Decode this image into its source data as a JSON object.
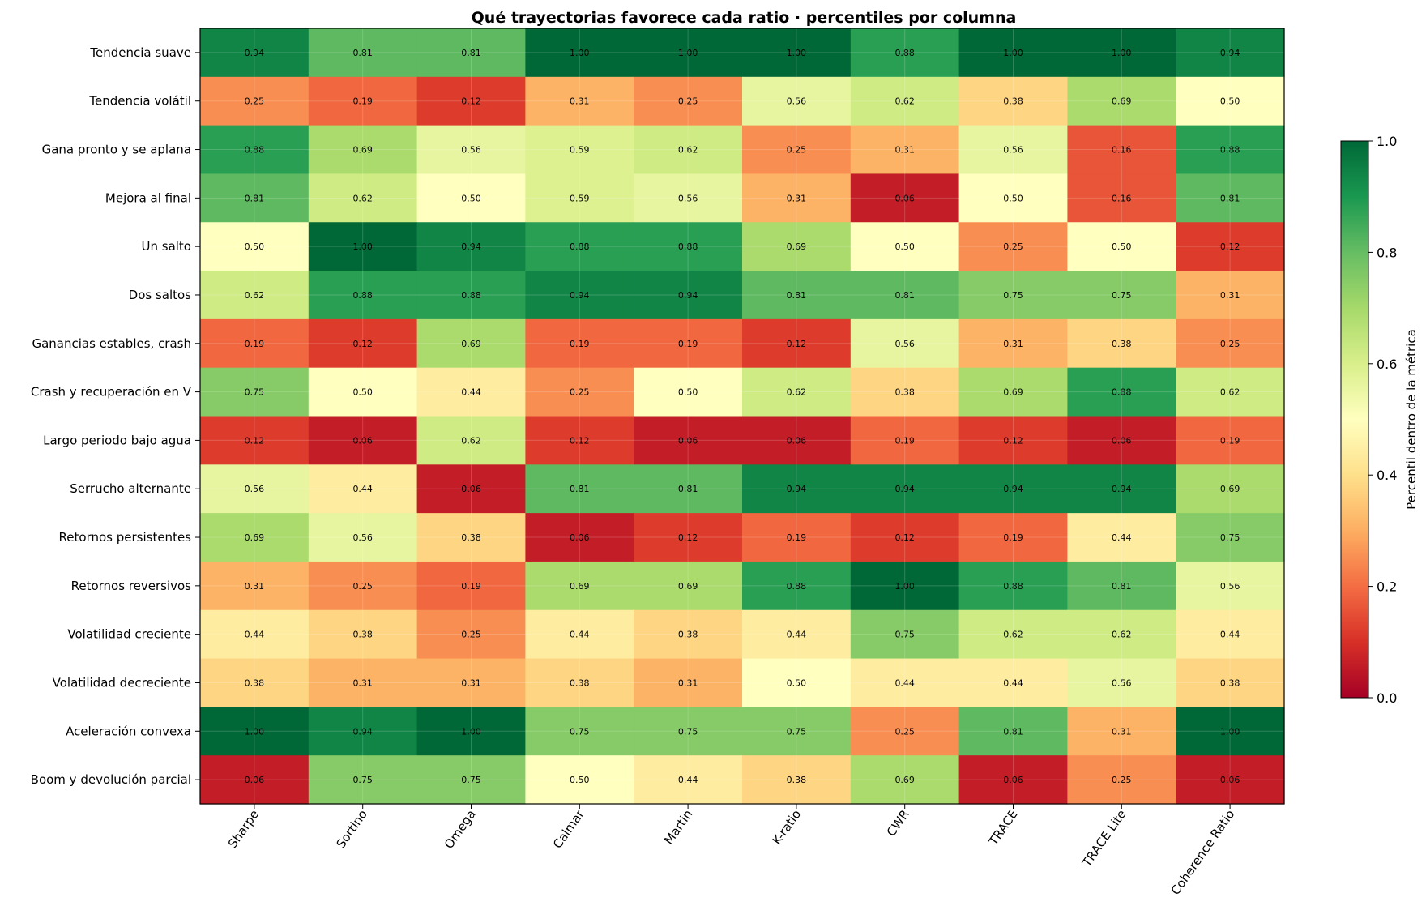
{
  "chart_data": {
    "type": "heatmap",
    "title": "Qué trayectorias favorece cada ratio · percentiles por columna",
    "rows": [
      "Tendencia suave",
      "Tendencia volátil",
      "Gana pronto y se aplana",
      "Mejora al final",
      "Un salto",
      "Dos saltos",
      "Ganancias estables, crash",
      "Crash y recuperación en V",
      "Largo periodo bajo agua",
      "Serrucho alternante",
      "Retornos persistentes",
      "Retornos reversivos",
      "Volatilidad creciente",
      "Volatilidad decreciente",
      "Aceleración convexa",
      "Boom y devolución parcial"
    ],
    "columns": [
      "Sharpe",
      "Sortino",
      "Omega",
      "Calmar",
      "Martin",
      "K-ratio",
      "CWR",
      "TRACE",
      "TRACE Lite",
      "Coherence Ratio"
    ],
    "values": [
      [
        0.94,
        0.81,
        0.81,
        1.0,
        1.0,
        1.0,
        0.88,
        1.0,
        1.0,
        0.94
      ],
      [
        0.25,
        0.19,
        0.12,
        0.31,
        0.25,
        0.56,
        0.62,
        0.38,
        0.69,
        0.5
      ],
      [
        0.88,
        0.69,
        0.56,
        0.59,
        0.62,
        0.25,
        0.31,
        0.56,
        0.16,
        0.88
      ],
      [
        0.81,
        0.62,
        0.5,
        0.59,
        0.56,
        0.31,
        0.06,
        0.5,
        0.16,
        0.81
      ],
      [
        0.5,
        1.0,
        0.94,
        0.88,
        0.88,
        0.69,
        0.5,
        0.25,
        0.5,
        0.12
      ],
      [
        0.62,
        0.88,
        0.88,
        0.94,
        0.94,
        0.81,
        0.81,
        0.75,
        0.75,
        0.31
      ],
      [
        0.19,
        0.12,
        0.69,
        0.19,
        0.19,
        0.12,
        0.56,
        0.31,
        0.38,
        0.25
      ],
      [
        0.75,
        0.5,
        0.44,
        0.25,
        0.5,
        0.62,
        0.38,
        0.69,
        0.88,
        0.62
      ],
      [
        0.12,
        0.06,
        0.62,
        0.12,
        0.06,
        0.06,
        0.19,
        0.12,
        0.06,
        0.19
      ],
      [
        0.56,
        0.44,
        0.06,
        0.81,
        0.81,
        0.94,
        0.94,
        0.94,
        0.94,
        0.69
      ],
      [
        0.69,
        0.56,
        0.38,
        0.06,
        0.12,
        0.19,
        0.12,
        0.19,
        0.44,
        0.75
      ],
      [
        0.31,
        0.25,
        0.19,
        0.69,
        0.69,
        0.88,
        1.0,
        0.88,
        0.81,
        0.56
      ],
      [
        0.44,
        0.38,
        0.25,
        0.44,
        0.38,
        0.44,
        0.75,
        0.62,
        0.62,
        0.44
      ],
      [
        0.38,
        0.31,
        0.31,
        0.38,
        0.31,
        0.5,
        0.44,
        0.44,
        0.56,
        0.38
      ],
      [
        1.0,
        0.94,
        1.0,
        0.75,
        0.75,
        0.75,
        0.25,
        0.81,
        0.31,
        1.0
      ],
      [
        0.06,
        0.75,
        0.75,
        0.5,
        0.44,
        0.38,
        0.69,
        0.06,
        0.25,
        0.06
      ]
    ],
    "value_format": "0.00",
    "colormap": "RdYlGn",
    "vmin": 0.0,
    "vmax": 1.0,
    "colorbar": {
      "label": "Percentil dentro de la métrica",
      "ticks": [
        "0.0",
        "0.2",
        "0.4",
        "0.6",
        "0.8",
        "1.0"
      ]
    },
    "grid": true
  }
}
